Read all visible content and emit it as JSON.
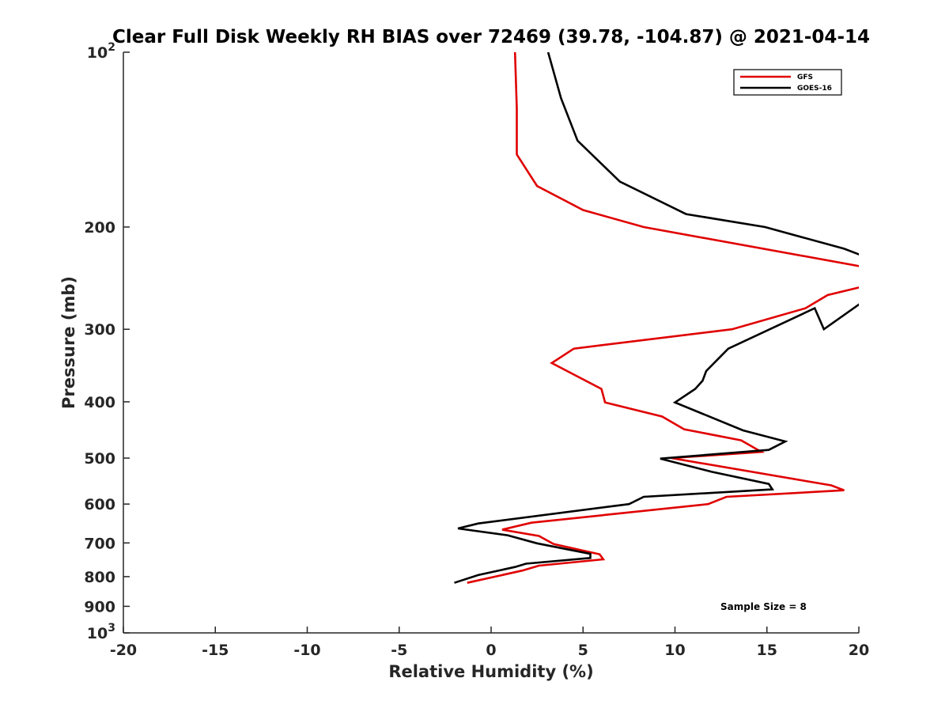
{
  "chart_data": {
    "type": "line",
    "title": "Clear Full Disk Weekly RH BIAS over 72469 (39.78, -104.87) @ 2021-04-14",
    "xlabel": "Relative Humidity (%)",
    "ylabel": "Pressure (mb)",
    "xlim": [
      -20,
      20
    ],
    "ylim": [
      100,
      1000
    ],
    "y_scale": "log",
    "y_reversed": true,
    "grid": false,
    "legend_position": "top-right",
    "x_ticks": [
      -20,
      -15,
      -10,
      -5,
      0,
      5,
      10,
      15,
      20
    ],
    "x_tick_labels": [
      "-20",
      "-15",
      "-10",
      "-5",
      "0",
      "5",
      "10",
      "15",
      "20"
    ],
    "y_ticks": [
      100,
      200,
      300,
      400,
      500,
      600,
      700,
      800,
      900,
      1000
    ],
    "y_tick_labels": [
      {
        "base": "10",
        "exp": "2"
      },
      {
        "base": "200",
        "exp": ""
      },
      {
        "base": "300",
        "exp": ""
      },
      {
        "base": "400",
        "exp": ""
      },
      {
        "base": "500",
        "exp": ""
      },
      {
        "base": "600",
        "exp": ""
      },
      {
        "base": "700",
        "exp": ""
      },
      {
        "base": "800",
        "exp": ""
      },
      {
        "base": "900",
        "exp": ""
      },
      {
        "base": "10",
        "exp": "3"
      }
    ],
    "annotation": "Sample Size = 8",
    "series": [
      {
        "name": "GFS",
        "color": "#e00000",
        "points": [
          [
            1.3,
            100
          ],
          [
            1.4,
            125
          ],
          [
            1.4,
            150
          ],
          [
            2.5,
            170
          ],
          [
            5.0,
            187
          ],
          [
            8.3,
            200
          ],
          [
            20.5,
            235
          ],
          [
            20.5,
            252
          ],
          [
            18.3,
            262
          ],
          [
            17.1,
            276
          ],
          [
            13.1,
            300
          ],
          [
            4.5,
            324
          ],
          [
            3.3,
            343
          ],
          [
            6.0,
            380
          ],
          [
            6.2,
            401
          ],
          [
            9.3,
            424
          ],
          [
            10.5,
            446
          ],
          [
            13.6,
            466
          ],
          [
            14.7,
            488
          ],
          [
            9.8,
            500
          ],
          [
            18.5,
            557
          ],
          [
            19.2,
            568
          ],
          [
            12.8,
            583
          ],
          [
            11.8,
            600
          ],
          [
            2.2,
            646
          ],
          [
            0.6,
            664
          ],
          [
            2.6,
            681
          ],
          [
            3.4,
            703
          ],
          [
            5.9,
            732
          ],
          [
            6.1,
            747
          ],
          [
            2.6,
            766
          ],
          [
            1.7,
            781
          ],
          [
            -1.3,
            820
          ]
        ]
      },
      {
        "name": "GOES-16",
        "color": "#000000",
        "points": [
          [
            3.1,
            100
          ],
          [
            3.8,
            120
          ],
          [
            4.7,
            142
          ],
          [
            7.0,
            167
          ],
          [
            10.6,
            190
          ],
          [
            14.9,
            200
          ],
          [
            19.2,
            218
          ],
          [
            20.5,
            226
          ],
          [
            20.5,
            265
          ],
          [
            18.1,
            300
          ],
          [
            17.6,
            276
          ],
          [
            12.9,
            324
          ],
          [
            11.7,
            354
          ],
          [
            11.5,
            368
          ],
          [
            11.1,
            380
          ],
          [
            10.0,
            401
          ],
          [
            13.7,
            448
          ],
          [
            16.0,
            468
          ],
          [
            15.1,
            484
          ],
          [
            9.2,
            501
          ],
          [
            12.0,
            528
          ],
          [
            15.1,
            554
          ],
          [
            15.3,
            566
          ],
          [
            8.3,
            583
          ],
          [
            7.5,
            600
          ],
          [
            -0.7,
            648
          ],
          [
            -1.8,
            661
          ],
          [
            0.9,
            679
          ],
          [
            2.5,
            701
          ],
          [
            5.4,
            731
          ],
          [
            5.4,
            743
          ],
          [
            1.9,
            760
          ],
          [
            1.3,
            770
          ],
          [
            -0.7,
            795
          ],
          [
            -2.0,
            820
          ]
        ]
      }
    ]
  }
}
